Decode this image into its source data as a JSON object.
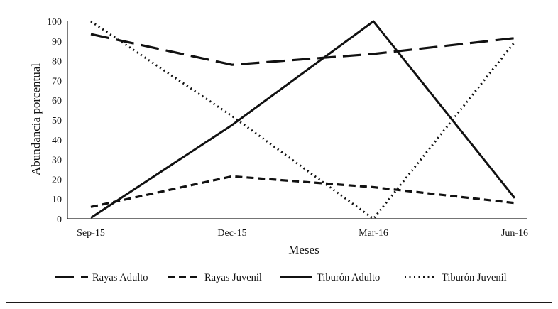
{
  "chart_data": {
    "type": "line",
    "xlabel": "Meses",
    "ylabel": "Abundancia porcentual",
    "ylim": [
      0,
      100
    ],
    "yticks": [
      0,
      10,
      20,
      30,
      40,
      50,
      60,
      70,
      80,
      90,
      100
    ],
    "categories": [
      "Sep-15",
      "Dec-15",
      "Mar-16",
      "Jun-16"
    ],
    "grid": false,
    "legend_position": "bottom",
    "series": [
      {
        "name": "Rayas Adulto",
        "values": [
          93.5,
          78,
          83.5,
          91.5
        ],
        "style": "long-dash",
        "color": "#111111"
      },
      {
        "name": "Rayas Juvenil",
        "values": [
          6,
          21.5,
          16,
          8
        ],
        "style": "dash",
        "color": "#111111"
      },
      {
        "name": "Tiburón Adulto",
        "values": [
          0.5,
          47.5,
          100,
          10.5
        ],
        "style": "solid",
        "color": "#111111"
      },
      {
        "name": "Tiburón Juvenil",
        "values": [
          100,
          52,
          0,
          89.5
        ],
        "style": "dotted",
        "color": "#111111"
      }
    ]
  }
}
